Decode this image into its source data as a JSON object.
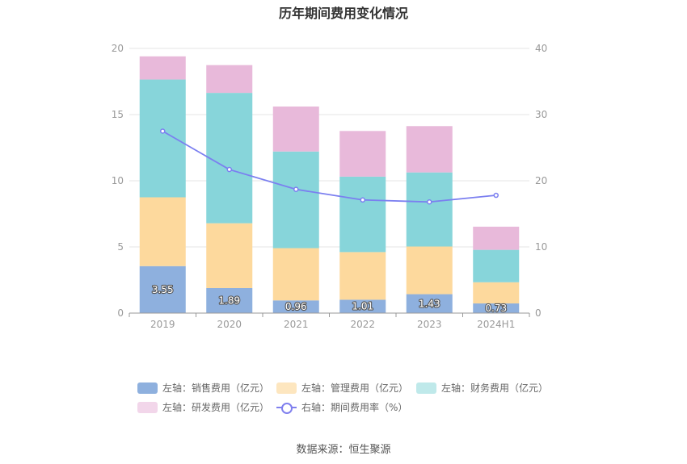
{
  "chart_data": {
    "type": "bar",
    "title": "历年期间费用变化情况",
    "categories": [
      "2019",
      "2020",
      "2021",
      "2022",
      "2023",
      "2024H1"
    ],
    "series": [
      {
        "name": "左轴：销售费用（亿元）",
        "color": "#8eb0de",
        "values": [
          3.55,
          1.89,
          0.96,
          1.01,
          1.43,
          0.73
        ]
      },
      {
        "name": "左轴：管理费用（亿元）",
        "color": "#fdd99d",
        "values": [
          5.2,
          4.9,
          3.95,
          3.6,
          3.6,
          1.6
        ]
      },
      {
        "name": "左轴：财务费用（亿元）",
        "color": "#87d5da",
        "values": [
          8.9,
          9.85,
          7.3,
          5.7,
          5.6,
          2.45
        ]
      },
      {
        "name": "左轴：研发费用（亿元）",
        "color": "#e8b9da",
        "values": [
          1.75,
          2.1,
          3.4,
          3.45,
          3.5,
          1.75
        ]
      }
    ],
    "line_series": {
      "name": "右轴：期间费用率（%）",
      "color": "#7b7ff0",
      "values": [
        27.5,
        21.7,
        18.7,
        17.1,
        16.8,
        17.8
      ]
    },
    "data_labels": [
      "3.55",
      "1.89",
      "0.96",
      "1.01",
      "1.43",
      "0.73"
    ],
    "ylim_left": [
      0,
      20
    ],
    "yticks_left": [
      "0",
      "5",
      "10",
      "15",
      "20"
    ],
    "ylim_right": [
      0,
      40
    ],
    "yticks_right": [
      "0",
      "10",
      "20",
      "30",
      "40"
    ],
    "legend_position": "bottom",
    "source": "数据来源：恒生聚源"
  }
}
